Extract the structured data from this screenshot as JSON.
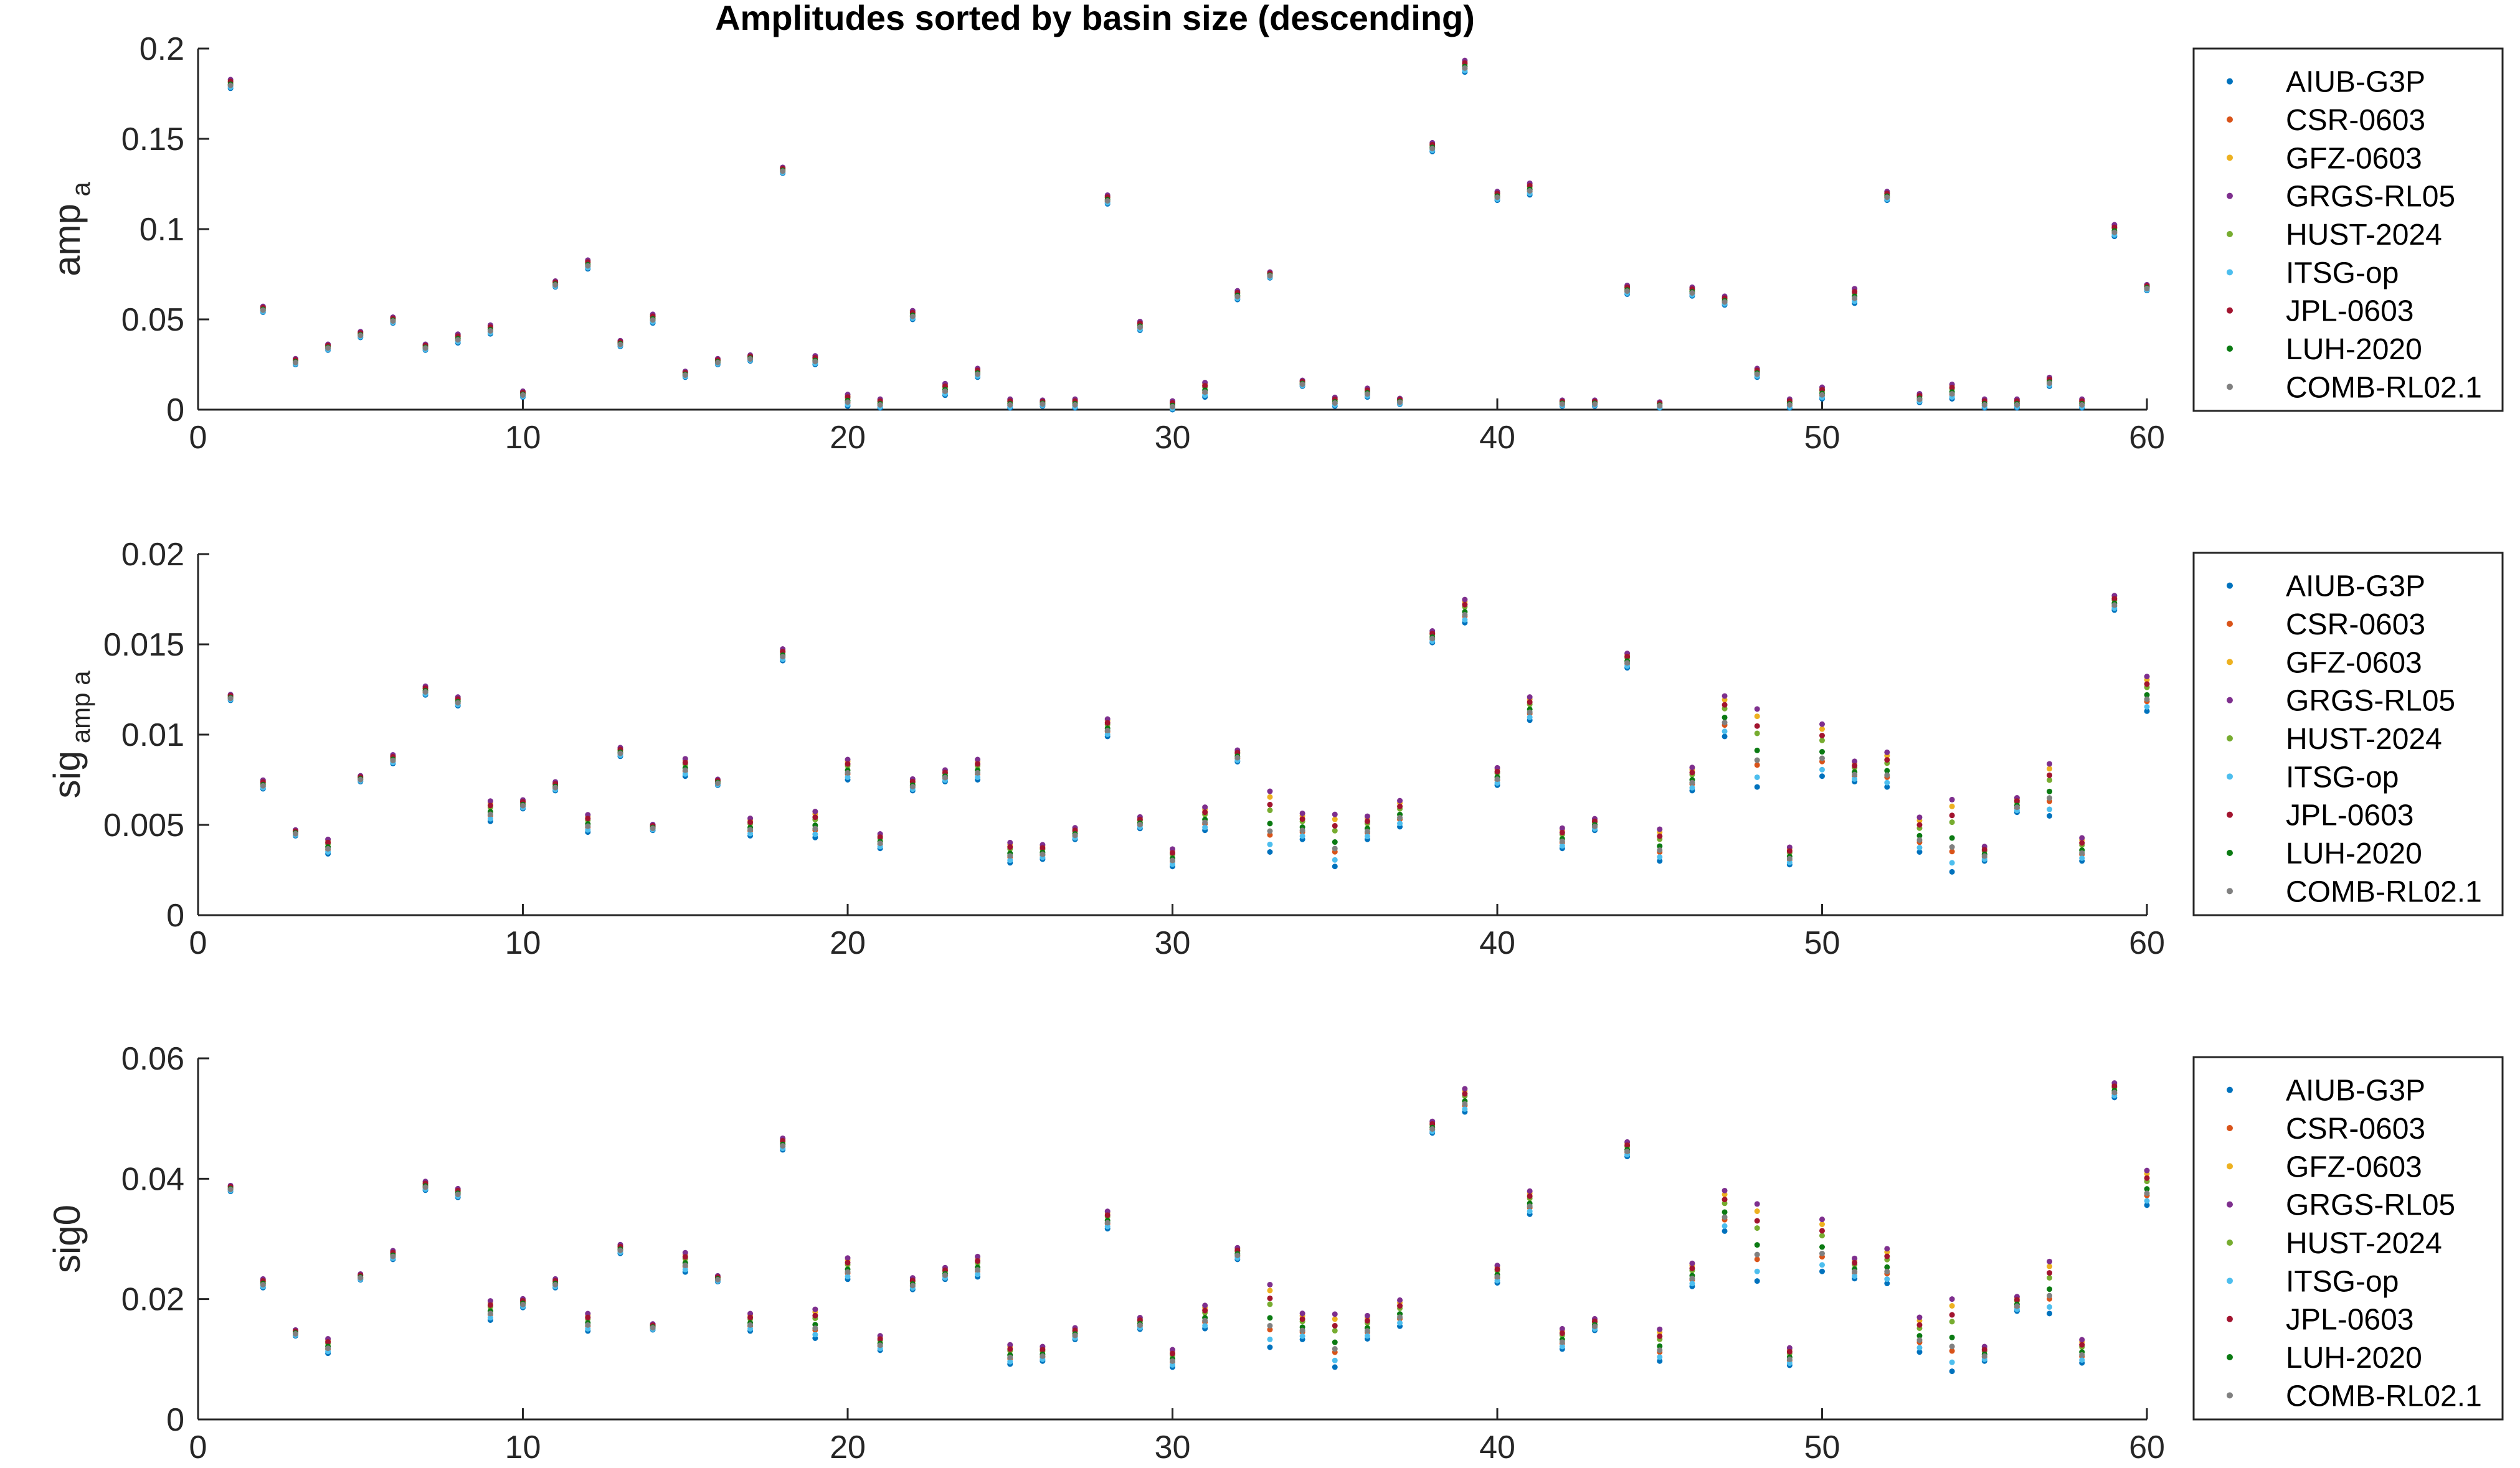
{
  "figure_title": "Amplitudes sorted by basin size (descending)",
  "series_styles": [
    {
      "name": "AIUB-G3P",
      "color": "#0072bd"
    },
    {
      "name": "CSR-0603",
      "color": "#d95319"
    },
    {
      "name": "GFZ-0603",
      "color": "#edb120"
    },
    {
      "name": "GRGS-RL05",
      "color": "#7e2f8e"
    },
    {
      "name": "HUST-2024",
      "color": "#77ac30"
    },
    {
      "name": "ITSG-op",
      "color": "#4dbeee"
    },
    {
      "name": "JPL-0603",
      "color": "#a2142f"
    },
    {
      "name": "LUH-2020",
      "color": "#0a7a12"
    },
    {
      "name": "COMB-RL02.1",
      "color": "#808080"
    }
  ],
  "chart_data": [
    {
      "type": "scatter",
      "title": "Amplitudes sorted by basin size (descending)",
      "ylabel": "amp",
      "ylabel_sub": "a",
      "xlim": [
        0,
        60
      ],
      "ylim": [
        0,
        0.2
      ],
      "xticks": [
        0,
        10,
        20,
        30,
        40,
        50,
        60
      ],
      "yticks": [
        0,
        0.05,
        0.1,
        0.15,
        0.2
      ],
      "ytick_labels": [
        "0",
        "0.05",
        "0.1",
        "0.15",
        "0.2"
      ],
      "legend_position": "outside-right",
      "legend_entries": [
        "AIUB-G3P",
        "CSR-0603",
        "GFZ-0603",
        "GRGS-RL05",
        "HUST-2024",
        "ITSG-op",
        "JPL-0603",
        "LUH-2020",
        "COMB-RL02.1"
      ],
      "x": [
        1,
        2,
        3,
        4,
        5,
        6,
        7,
        8,
        9,
        10,
        11,
        12,
        13,
        14,
        15,
        16,
        17,
        18,
        19,
        20,
        21,
        22,
        23,
        24,
        25,
        26,
        27,
        28,
        29,
        30,
        31,
        32,
        33,
        34,
        35,
        36,
        37,
        38,
        39,
        40,
        41,
        42,
        43,
        44,
        45,
        46,
        47,
        48,
        49,
        50,
        51,
        52,
        53,
        54,
        55,
        56,
        57,
        58,
        59,
        60
      ],
      "center": [
        0.181,
        0.056,
        0.027,
        0.035,
        0.042,
        0.05,
        0.035,
        0.04,
        0.045,
        0.009,
        0.07,
        0.081,
        0.037,
        0.051,
        0.02,
        0.027,
        0.029,
        0.133,
        0.028,
        0.006,
        0.004,
        0.053,
        0.012,
        0.021,
        0.004,
        0.004,
        0.004,
        0.117,
        0.047,
        0.003,
        0.012,
        0.064,
        0.075,
        0.015,
        0.005,
        0.01,
        0.005,
        0.146,
        0.191,
        0.119,
        0.123,
        0.004,
        0.004,
        0.067,
        0.003,
        0.066,
        0.061,
        0.021,
        0.004,
        0.01,
        0.064,
        0.119,
        0.007,
        0.011,
        0.004,
        0.004,
        0.016,
        0.004,
        0.1,
        0.068
      ],
      "spread": [
        0.003,
        0.002,
        0.002,
        0.002,
        0.002,
        0.002,
        0.002,
        0.003,
        0.003,
        0.002,
        0.002,
        0.003,
        0.002,
        0.003,
        0.002,
        0.002,
        0.002,
        0.002,
        0.003,
        0.004,
        0.003,
        0.003,
        0.004,
        0.003,
        0.003,
        0.002,
        0.003,
        0.003,
        0.003,
        0.003,
        0.005,
        0.003,
        0.002,
        0.002,
        0.003,
        0.003,
        0.002,
        0.003,
        0.004,
        0.003,
        0.004,
        0.002,
        0.002,
        0.003,
        0.002,
        0.003,
        0.003,
        0.003,
        0.003,
        0.004,
        0.005,
        0.003,
        0.003,
        0.005,
        0.003,
        0.003,
        0.003,
        0.003,
        0.004,
        0.002
      ]
    },
    {
      "type": "scatter",
      "ylabel": "sig",
      "ylabel_sub": "amp a",
      "xlim": [
        0,
        60
      ],
      "ylim": [
        0,
        0.02
      ],
      "xticks": [
        0,
        10,
        20,
        30,
        40,
        50,
        60
      ],
      "yticks": [
        0,
        0.005,
        0.01,
        0.015,
        0.02
      ],
      "ytick_labels": [
        "0",
        "0.005",
        "0.01",
        "0.015",
        "0.02"
      ],
      "legend_position": "outside-right",
      "legend_entries": [
        "AIUB-G3P",
        "CSR-0603",
        "GFZ-0603",
        "GRGS-RL05",
        "HUST-2024",
        "ITSG-op",
        "JPL-0603",
        "LUH-2020",
        "COMB-RL02.1"
      ],
      "x": [
        1,
        2,
        3,
        4,
        5,
        6,
        7,
        8,
        9,
        10,
        11,
        12,
        13,
        14,
        15,
        16,
        17,
        18,
        19,
        20,
        21,
        22,
        23,
        24,
        25,
        26,
        27,
        28,
        29,
        30,
        31,
        32,
        33,
        34,
        35,
        36,
        37,
        38,
        39,
        40,
        41,
        42,
        43,
        44,
        45,
        46,
        47,
        48,
        49,
        50,
        51,
        52,
        53,
        54,
        55,
        56,
        57,
        58,
        59,
        60
      ],
      "center": [
        0.0121,
        0.0073,
        0.0046,
        0.0039,
        0.0076,
        0.0087,
        0.0125,
        0.0119,
        0.0059,
        0.0062,
        0.0072,
        0.0052,
        0.0091,
        0.0049,
        0.0083,
        0.0074,
        0.005,
        0.0145,
        0.0052,
        0.0082,
        0.0042,
        0.0073,
        0.0078,
        0.0082,
        0.0036,
        0.0036,
        0.0046,
        0.0105,
        0.0052,
        0.0033,
        0.0055,
        0.0089,
        0.0056,
        0.0051,
        0.0045,
        0.005,
        0.0058,
        0.0155,
        0.017,
        0.0078,
        0.0116,
        0.0044,
        0.0051,
        0.0142,
        0.0041,
        0.0077,
        0.0113,
        0.0098,
        0.0034,
        0.0095,
        0.0081,
        0.0083,
        0.0047,
        0.0049,
        0.0035,
        0.0062,
        0.0073,
        0.0038,
        0.0174,
        0.0125
      ],
      "spread": [
        0.0002,
        0.0003,
        0.0002,
        0.0005,
        0.0002,
        0.0003,
        0.0003,
        0.0003,
        0.0007,
        0.0003,
        0.0003,
        0.0006,
        0.0003,
        0.0002,
        0.0006,
        0.0002,
        0.0006,
        0.0004,
        0.0009,
        0.0007,
        0.0005,
        0.0004,
        0.0004,
        0.0007,
        0.0007,
        0.0005,
        0.0004,
        0.0006,
        0.0004,
        0.0006,
        0.0008,
        0.0004,
        0.0021,
        0.0009,
        0.0018,
        0.0008,
        0.0009,
        0.0004,
        0.0008,
        0.0006,
        0.0008,
        0.0007,
        0.0004,
        0.0005,
        0.0011,
        0.0008,
        0.0014,
        0.0027,
        0.0006,
        0.0018,
        0.0007,
        0.0012,
        0.0012,
        0.0025,
        0.0005,
        0.0005,
        0.0018,
        0.0008,
        0.0005,
        0.0012
      ]
    },
    {
      "type": "scatter",
      "ylabel": "sig0",
      "ylabel_sub": "",
      "xlim": [
        0,
        60
      ],
      "ylim": [
        0,
        0.06
      ],
      "xticks": [
        0,
        10,
        20,
        30,
        40,
        50,
        60
      ],
      "yticks": [
        0,
        0.02,
        0.04,
        0.06
      ],
      "ytick_labels": [
        "0",
        "0.02",
        "0.04",
        "0.06"
      ],
      "legend_position": "outside-right",
      "legend_entries": [
        "AIUB-G3P",
        "CSR-0603",
        "GFZ-0603",
        "GRGS-RL05",
        "HUST-2024",
        "ITSG-op",
        "JPL-0603",
        "LUH-2020",
        "COMB-RL02.1"
      ],
      "x": [
        1,
        2,
        3,
        4,
        5,
        6,
        7,
        8,
        9,
        10,
        11,
        12,
        13,
        14,
        15,
        16,
        17,
        18,
        19,
        20,
        21,
        22,
        23,
        24,
        25,
        26,
        27,
        28,
        29,
        30,
        31,
        32,
        33,
        34,
        35,
        36,
        37,
        38,
        39,
        40,
        41,
        42,
        43,
        44,
        45,
        46,
        47,
        48,
        49,
        50,
        51,
        52,
        53,
        54,
        55,
        56,
        57,
        58,
        59,
        60
      ],
      "center": [
        0.0385,
        0.0228,
        0.0145,
        0.0125,
        0.0238,
        0.0275,
        0.039,
        0.0378,
        0.0185,
        0.0195,
        0.0228,
        0.0165,
        0.0285,
        0.0155,
        0.0265,
        0.0235,
        0.0165,
        0.046,
        0.0165,
        0.0255,
        0.013,
        0.0228,
        0.0245,
        0.0258,
        0.0112,
        0.0112,
        0.0145,
        0.0335,
        0.0162,
        0.0105,
        0.0175,
        0.0278,
        0.0185,
        0.016,
        0.0142,
        0.0158,
        0.0182,
        0.0488,
        0.0535,
        0.0245,
        0.0365,
        0.0138,
        0.016,
        0.0452,
        0.013,
        0.0245,
        0.0355,
        0.031,
        0.0108,
        0.03,
        0.0255,
        0.0262,
        0.0148,
        0.0155,
        0.0112,
        0.0195,
        0.023,
        0.0118,
        0.055,
        0.0392
      ],
      "spread": [
        0.0006,
        0.0009,
        0.0006,
        0.0015,
        0.0006,
        0.0009,
        0.0009,
        0.0009,
        0.002,
        0.0009,
        0.0009,
        0.0018,
        0.0009,
        0.0006,
        0.002,
        0.0006,
        0.0018,
        0.0012,
        0.003,
        0.0022,
        0.0015,
        0.0012,
        0.0012,
        0.0021,
        0.002,
        0.0015,
        0.0012,
        0.0018,
        0.0012,
        0.0018,
        0.0024,
        0.0012,
        0.0065,
        0.0027,
        0.0055,
        0.0024,
        0.0027,
        0.0012,
        0.0024,
        0.0018,
        0.0024,
        0.0021,
        0.0012,
        0.0015,
        0.0033,
        0.0024,
        0.0042,
        0.008,
        0.0018,
        0.0054,
        0.0021,
        0.0036,
        0.0036,
        0.0075,
        0.0015,
        0.0015,
        0.0054,
        0.0024,
        0.0015,
        0.0036
      ]
    }
  ]
}
